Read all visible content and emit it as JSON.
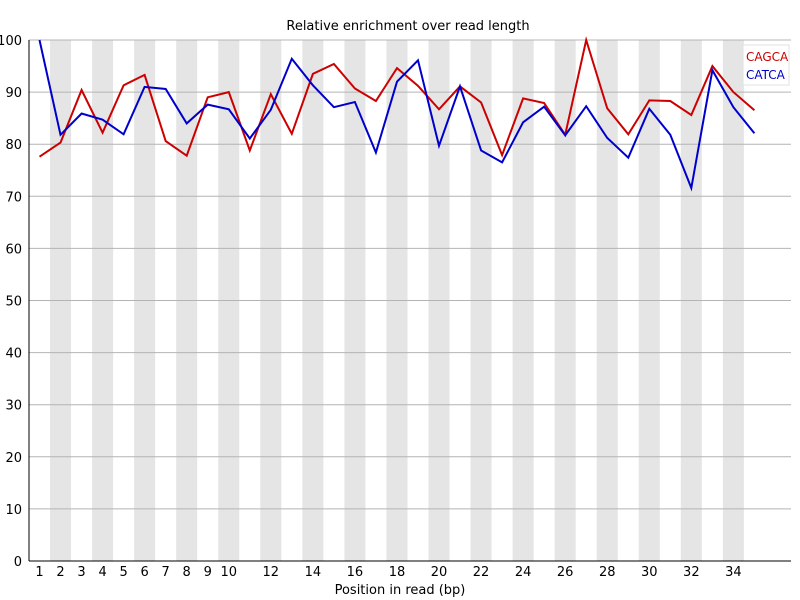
{
  "chart_data": {
    "type": "line",
    "title": "Relative enrichment over read length",
    "xlabel": "Position in read (bp)",
    "ylabel": "",
    "ylim": [
      0,
      100
    ],
    "yticks": [
      0,
      10,
      20,
      30,
      40,
      50,
      60,
      70,
      80,
      90,
      100
    ],
    "x": [
      1,
      2,
      3,
      4,
      5,
      6,
      7,
      8,
      9,
      10,
      11,
      12,
      13,
      14,
      15,
      16,
      17,
      18,
      19,
      20,
      21,
      22,
      23,
      24,
      25,
      26,
      27,
      28,
      29,
      30,
      31,
      32,
      33,
      34,
      35
    ],
    "xtick_labels": [
      "1",
      "2",
      "3",
      "4",
      "5",
      "6",
      "7",
      "8",
      "9",
      "10",
      "12",
      "14",
      "16",
      "18",
      "20",
      "22",
      "24",
      "26",
      "28",
      "30",
      "32",
      "34"
    ],
    "xtick_positions": [
      1,
      2,
      3,
      4,
      5,
      6,
      7,
      8,
      9,
      10,
      12,
      14,
      16,
      18,
      20,
      22,
      24,
      26,
      28,
      30,
      32,
      34
    ],
    "grid": true,
    "legend_position": "top-right",
    "series": [
      {
        "name": "CAGCA",
        "color": "#cc0000",
        "values": [
          77.6,
          80.3,
          90.4,
          82.2,
          91.3,
          93.3,
          80.6,
          77.8,
          89.0,
          90.0,
          78.8,
          89.6,
          82.0,
          93.5,
          95.4,
          90.7,
          88.3,
          94.6,
          91.2,
          86.7,
          91.1,
          88.0,
          77.9,
          88.8,
          87.9,
          81.8,
          100.0,
          86.9,
          81.9,
          88.4,
          88.3,
          85.6,
          95.0,
          90.0,
          86.5
        ]
      },
      {
        "name": "CATCA",
        "color": "#0000cc",
        "values": [
          100.0,
          81.8,
          85.9,
          84.7,
          81.9,
          91.0,
          90.6,
          84.0,
          87.6,
          86.7,
          81.1,
          86.6,
          96.4,
          91.3,
          87.1,
          88.1,
          78.4,
          92.0,
          96.1,
          79.7,
          91.1,
          78.8,
          76.5,
          84.2,
          87.2,
          81.7,
          87.3,
          81.2,
          77.4,
          86.8,
          81.8,
          71.6,
          94.2,
          87.1,
          82.1
        ]
      }
    ]
  }
}
